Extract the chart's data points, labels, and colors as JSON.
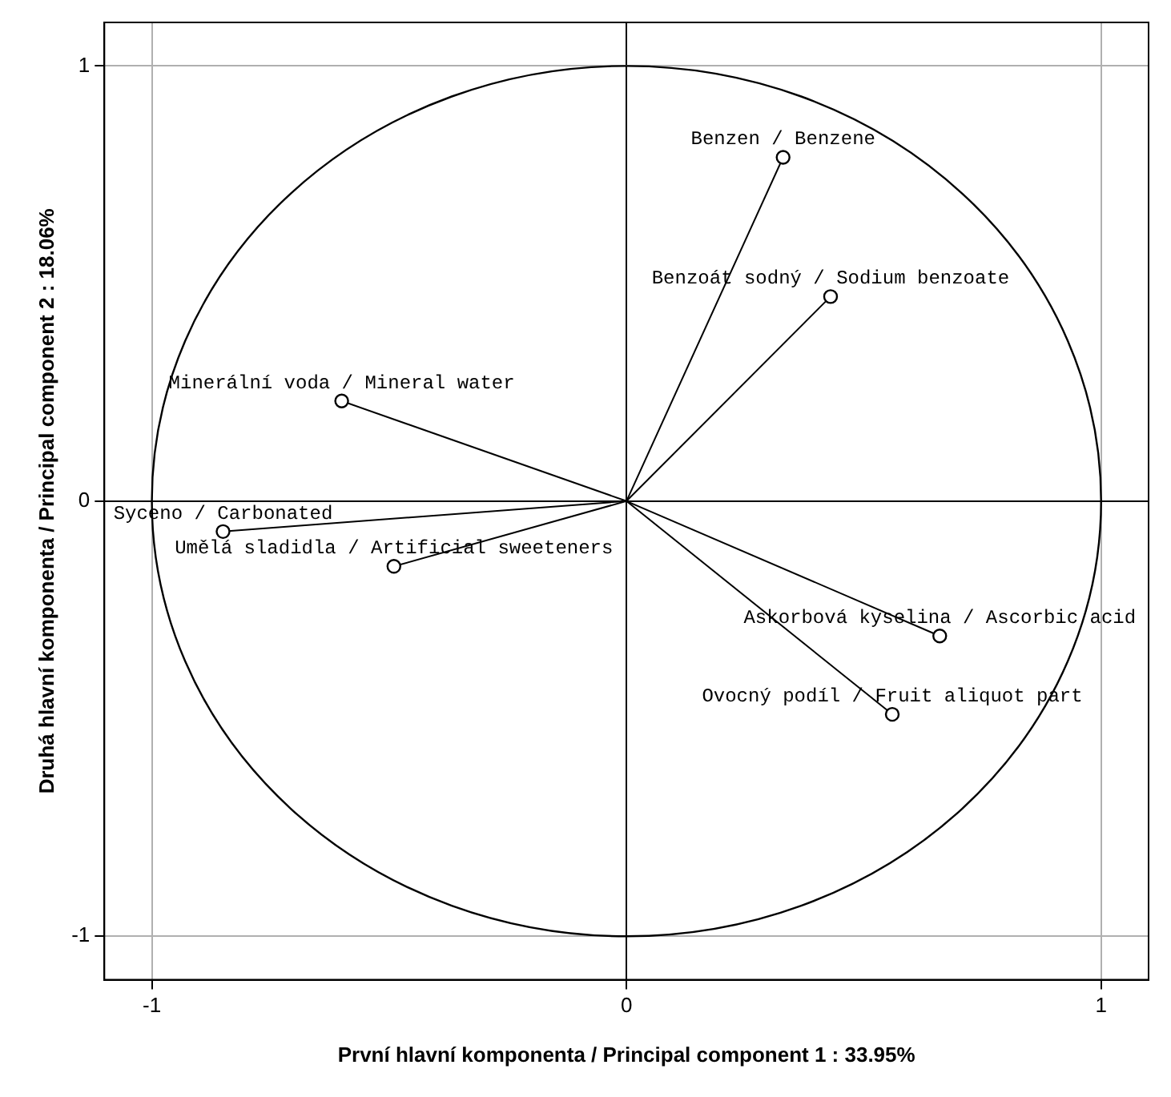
{
  "chart_data": {
    "type": "scatter",
    "xlabel": "První hlavní komponenta / Principal component 1 : 33.95%",
    "ylabel": "Druhá hlavní komponenta / Principal component 2 : 18.06%",
    "xlim": [
      -1.1,
      1.1
    ],
    "xticks": [
      -1,
      0,
      1
    ],
    "ylim": [
      -1.1,
      1.1
    ],
    "yticks": [
      -1,
      0,
      1
    ],
    "grid": true,
    "legend": false,
    "series": [
      {
        "type": "line",
        "color": "#000000",
        "x": [
          0,
          0.33
        ],
        "values": [
          0,
          0.79
        ]
      },
      {
        "type": "line",
        "color": "#000000",
        "x": [
          0,
          0.43
        ],
        "values": [
          0,
          0.47
        ]
      },
      {
        "type": "line",
        "color": "#000000",
        "x": [
          0,
          -0.6
        ],
        "values": [
          0,
          0.23
        ]
      },
      {
        "type": "line",
        "color": "#000000",
        "x": [
          0,
          -0.85
        ],
        "values": [
          0,
          -0.07
        ]
      },
      {
        "type": "line",
        "color": "#000000",
        "x": [
          0,
          -0.49
        ],
        "values": [
          0,
          -0.15
        ]
      },
      {
        "type": "line",
        "color": "#000000",
        "x": [
          0,
          0.66
        ],
        "values": [
          0,
          -0.31
        ]
      },
      {
        "type": "line",
        "color": "#000000",
        "x": [
          0,
          0.56
        ],
        "values": [
          0,
          -0.49
        ]
      },
      {
        "type": "scatter",
        "color": "#000000",
        "marker": "circle",
        "x": [
          0.33,
          0.43,
          -0.6,
          -0.85,
          -0.49,
          0.66,
          0.56
        ],
        "values": [
          0.79,
          0.47,
          0.23,
          -0.07,
          -0.15,
          -0.31,
          -0.49
        ]
      }
    ],
    "annotations": [
      {
        "text": "Benzen / Benzene",
        "x": 0.33,
        "y": 0.79
      },
      {
        "text": "Benzoát sodný / Sodium benzoate",
        "x": 0.43,
        "y": 0.47
      },
      {
        "text": "Minerální voda / Mineral water",
        "x": -0.6,
        "y": 0.23
      },
      {
        "text": "Syceno / Carbonated",
        "x": -0.85,
        "y": -0.07
      },
      {
        "text": "Umělá sladidla / Artificial sweeteners",
        "x": -0.49,
        "y": -0.15
      },
      {
        "text": "Askorbová kyselina / Ascorbic acid",
        "x": 0.66,
        "y": -0.31
      },
      {
        "text": "Ovocný podíl / Fruit aliquot part",
        "x": 0.56,
        "y": -0.49
      }
    ]
  }
}
